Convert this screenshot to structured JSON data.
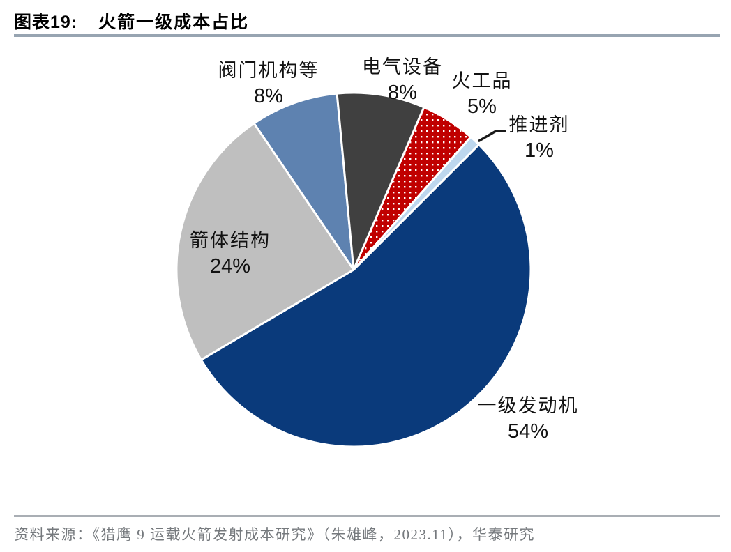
{
  "header": {
    "figure_label": "图表19:",
    "title": "火箭一级成本占比"
  },
  "chart_data": {
    "type": "pie",
    "title": "火箭一级成本占比",
    "rotation_deg_clockwise_from_top": 45,
    "center": [
      507,
      387
    ],
    "radius": 254,
    "slice_border_color": "#ffffff",
    "slices": [
      {
        "label": "一级发动机",
        "value": 54,
        "pct_label": "54%",
        "color": "#0a3a7b",
        "pattern": "solid"
      },
      {
        "label": "箭体结构",
        "value": 24,
        "pct_label": "24%",
        "color": "#bfbfbf",
        "pattern": "solid"
      },
      {
        "label": "阀门机构等",
        "value": 8,
        "pct_label": "8%",
        "color": "#5e82b0",
        "pattern": "solid"
      },
      {
        "label": "电气设备",
        "value": 8,
        "pct_label": "8%",
        "color": "#404040",
        "pattern": "solid"
      },
      {
        "label": "火工品",
        "value": 5,
        "pct_label": "5%",
        "color": "#c00000",
        "pattern": "white-dots"
      },
      {
        "label": "推进剂",
        "value": 1,
        "pct_label": "1%",
        "color": "#bdd7ee",
        "pattern": "solid"
      }
    ]
  },
  "footer": {
    "source": "资料来源：《猎鹰 9 运载火箭发射成本研究》（朱雄峰，2023.11），华泰研究"
  }
}
